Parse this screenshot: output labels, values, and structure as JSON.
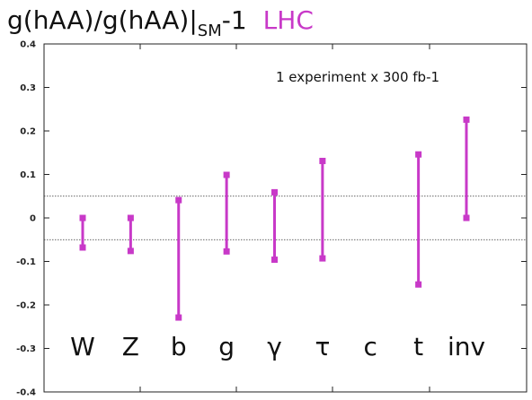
{
  "title": {
    "prefix": "g(hAA)/g(hAA)|",
    "subscript": "SM",
    "suffix": "-1",
    "accent_text": "LHC",
    "accent_color": "#c839c8"
  },
  "chart_data": {
    "type": "range-bar",
    "annotation": "1 experiment x 300 fb-1",
    "ylim": [
      -0.4,
      0.4
    ],
    "yticks": [
      -0.4,
      -0.3,
      -0.2,
      -0.1,
      0,
      0.1,
      0.2,
      0.3,
      0.4
    ],
    "ytick_labels": [
      "-0.4",
      "-0.3",
      "-0.2",
      "-0.1",
      "0",
      "0.1",
      "0.2",
      "0.3",
      "0.4"
    ],
    "reference_lines": [
      0.05,
      -0.05
    ],
    "grid": false,
    "categories": [
      "W",
      "Z",
      "b",
      "g",
      "γ",
      "τ",
      "c",
      "t",
      "inv"
    ],
    "series": [
      {
        "color": "#c839c8",
        "low": [
          -0.068,
          -0.076,
          -0.229,
          -0.077,
          -0.096,
          -0.093,
          null,
          -0.153,
          0.0
        ],
        "high": [
          0.0,
          0.0,
          0.041,
          0.099,
          0.059,
          0.131,
          null,
          0.146,
          0.226
        ]
      }
    ]
  }
}
